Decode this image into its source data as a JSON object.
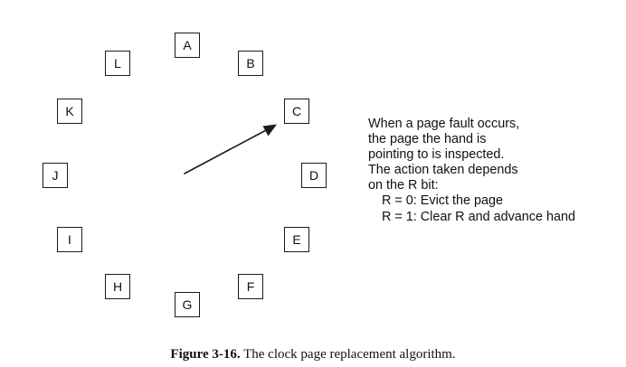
{
  "clock": {
    "pages": [
      "A",
      "B",
      "C",
      "D",
      "E",
      "F",
      "G",
      "H",
      "I",
      "J",
      "K",
      "L"
    ],
    "hand_points_to": "C"
  },
  "explanation": {
    "lines": [
      "When a page fault occurs,",
      "the page the hand is",
      "pointing to is inspected.",
      "The action taken depends",
      "on the R bit:"
    ],
    "rules": [
      "R = 0: Evict the page",
      "R = 1: Clear R and advance hand"
    ]
  },
  "caption": {
    "label": "Figure 3-16.",
    "text": "The clock page replacement algorithm."
  }
}
